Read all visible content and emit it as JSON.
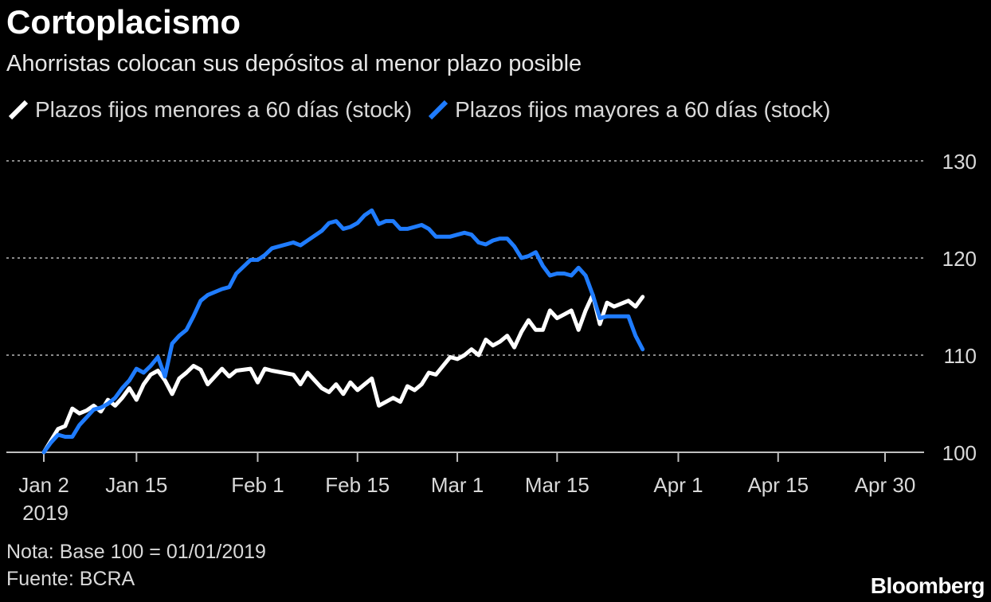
{
  "chart_data": {
    "type": "line",
    "title": "Cortoplacismo",
    "subtitle": "Ahorristas colocan sus depósitos al menor plazo posible",
    "ylim": [
      100,
      130
    ],
    "yticks": [
      100,
      110,
      120,
      130
    ],
    "grid": true,
    "legend": "top-left",
    "x_start": "2019-01-02",
    "x_end": "2019-04-30",
    "xticks": [
      {
        "date": "2019-01-02",
        "label": "Jan 2",
        "sublabel": "2019"
      },
      {
        "date": "2019-01-15",
        "label": "Jan 15"
      },
      {
        "date": "2019-02-01",
        "label": "Feb 1"
      },
      {
        "date": "2019-02-15",
        "label": "Feb 15"
      },
      {
        "date": "2019-03-01",
        "label": "Mar 1"
      },
      {
        "date": "2019-03-15",
        "label": "Mar 15"
      },
      {
        "date": "2019-04-01",
        "label": "Apr 1"
      },
      {
        "date": "2019-04-15",
        "label": "Apr 15"
      },
      {
        "date": "2019-04-30",
        "label": "Apr 30"
      }
    ],
    "series": [
      {
        "name": "Plazos fijos menores a 60 días (stock)",
        "color": "#ffffff",
        "points": [
          [
            "2019-01-02",
            100.0
          ],
          [
            "2019-01-03",
            101.2
          ],
          [
            "2019-01-04",
            102.4
          ],
          [
            "2019-01-05",
            102.7
          ],
          [
            "2019-01-06",
            104.5
          ],
          [
            "2019-01-07",
            104.0
          ],
          [
            "2019-01-08",
            104.3
          ],
          [
            "2019-01-09",
            104.8
          ],
          [
            "2019-01-10",
            104.2
          ],
          [
            "2019-01-11",
            105.4
          ],
          [
            "2019-01-12",
            104.8
          ],
          [
            "2019-01-13",
            105.6
          ],
          [
            "2019-01-14",
            106.6
          ],
          [
            "2019-01-15",
            105.4
          ],
          [
            "2019-01-16",
            107.0
          ],
          [
            "2019-01-17",
            108.0
          ],
          [
            "2019-01-18",
            108.4
          ],
          [
            "2019-01-19",
            107.4
          ],
          [
            "2019-01-20",
            106.0
          ],
          [
            "2019-01-21",
            107.6
          ],
          [
            "2019-01-22",
            108.2
          ],
          [
            "2019-01-23",
            108.9
          ],
          [
            "2019-01-24",
            108.5
          ],
          [
            "2019-01-25",
            107.0
          ],
          [
            "2019-01-27",
            108.6
          ],
          [
            "2019-01-28",
            107.8
          ],
          [
            "2019-01-29",
            108.4
          ],
          [
            "2019-01-31",
            108.6
          ],
          [
            "2019-02-01",
            107.2
          ],
          [
            "2019-02-02",
            108.6
          ],
          [
            "2019-02-03",
            108.4
          ],
          [
            "2019-02-06",
            108.0
          ],
          [
            "2019-02-07",
            107.0
          ],
          [
            "2019-02-08",
            108.2
          ],
          [
            "2019-02-10",
            106.6
          ],
          [
            "2019-02-11",
            106.2
          ],
          [
            "2019-02-12",
            107.0
          ],
          [
            "2019-02-13",
            106.0
          ],
          [
            "2019-02-14",
            107.2
          ],
          [
            "2019-02-15",
            106.4
          ],
          [
            "2019-02-16",
            107.0
          ],
          [
            "2019-02-17",
            107.6
          ],
          [
            "2019-02-18",
            104.8
          ],
          [
            "2019-02-19",
            105.2
          ],
          [
            "2019-02-20",
            105.6
          ],
          [
            "2019-02-21",
            105.2
          ],
          [
            "2019-02-22",
            106.8
          ],
          [
            "2019-02-23",
            106.4
          ],
          [
            "2019-02-24",
            107.0
          ],
          [
            "2019-02-25",
            108.2
          ],
          [
            "2019-02-26",
            108.0
          ],
          [
            "2019-02-28",
            109.8
          ],
          [
            "2019-03-01",
            109.6
          ],
          [
            "2019-03-02",
            110.0
          ],
          [
            "2019-03-03",
            110.6
          ],
          [
            "2019-03-04",
            110.0
          ],
          [
            "2019-03-05",
            111.6
          ],
          [
            "2019-03-06",
            111.0
          ],
          [
            "2019-03-07",
            111.4
          ],
          [
            "2019-03-08",
            112.0
          ],
          [
            "2019-03-09",
            110.8
          ],
          [
            "2019-03-10",
            112.4
          ],
          [
            "2019-03-11",
            113.6
          ],
          [
            "2019-03-12",
            112.6
          ],
          [
            "2019-03-13",
            112.6
          ],
          [
            "2019-03-14",
            114.6
          ],
          [
            "2019-03-15",
            113.8
          ],
          [
            "2019-03-16",
            114.2
          ],
          [
            "2019-03-17",
            114.6
          ],
          [
            "2019-03-18",
            112.6
          ],
          [
            "2019-03-19",
            114.6
          ],
          [
            "2019-03-20",
            116.2
          ],
          [
            "2019-03-21",
            113.2
          ],
          [
            "2019-03-22",
            115.4
          ],
          [
            "2019-03-23",
            115.0
          ],
          [
            "2019-03-24",
            115.3
          ],
          [
            "2019-03-25",
            115.6
          ],
          [
            "2019-03-26",
            115.0
          ],
          [
            "2019-03-27",
            116.0
          ]
        ]
      },
      {
        "name": "Plazos fijos mayores a 60 días (stock)",
        "color": "#1f7cff",
        "points": [
          [
            "2019-01-02",
            100.0
          ],
          [
            "2019-01-03",
            101.0
          ],
          [
            "2019-01-04",
            101.8
          ],
          [
            "2019-01-05",
            101.6
          ],
          [
            "2019-01-06",
            101.6
          ],
          [
            "2019-01-07",
            102.8
          ],
          [
            "2019-01-08",
            103.6
          ],
          [
            "2019-01-09",
            104.4
          ],
          [
            "2019-01-10",
            104.6
          ],
          [
            "2019-01-11",
            105.0
          ],
          [
            "2019-01-12",
            105.6
          ],
          [
            "2019-01-13",
            106.6
          ],
          [
            "2019-01-14",
            107.4
          ],
          [
            "2019-01-15",
            108.6
          ],
          [
            "2019-01-16",
            108.2
          ],
          [
            "2019-01-17",
            108.9
          ],
          [
            "2019-01-18",
            109.8
          ],
          [
            "2019-01-19",
            107.8
          ],
          [
            "2019-01-20",
            111.2
          ],
          [
            "2019-01-21",
            112.0
          ],
          [
            "2019-01-22",
            112.6
          ],
          [
            "2019-01-23",
            114.0
          ],
          [
            "2019-01-24",
            115.6
          ],
          [
            "2019-01-25",
            116.2
          ],
          [
            "2019-01-27",
            116.8
          ],
          [
            "2019-01-28",
            117.0
          ],
          [
            "2019-01-29",
            118.4
          ],
          [
            "2019-01-31",
            119.8
          ],
          [
            "2019-02-01",
            119.8
          ],
          [
            "2019-02-02",
            120.3
          ],
          [
            "2019-02-03",
            121.0
          ],
          [
            "2019-02-06",
            121.6
          ],
          [
            "2019-02-07",
            121.3
          ],
          [
            "2019-02-08",
            121.8
          ],
          [
            "2019-02-10",
            122.8
          ],
          [
            "2019-02-11",
            123.6
          ],
          [
            "2019-02-12",
            123.8
          ],
          [
            "2019-02-13",
            123.0
          ],
          [
            "2019-02-14",
            123.2
          ],
          [
            "2019-02-15",
            123.6
          ],
          [
            "2019-02-16",
            124.4
          ],
          [
            "2019-02-17",
            124.9
          ],
          [
            "2019-02-18",
            123.5
          ],
          [
            "2019-02-19",
            123.8
          ],
          [
            "2019-02-20",
            123.8
          ],
          [
            "2019-02-21",
            123.0
          ],
          [
            "2019-02-22",
            123.0
          ],
          [
            "2019-02-23",
            123.2
          ],
          [
            "2019-02-24",
            123.4
          ],
          [
            "2019-02-25",
            123.0
          ],
          [
            "2019-02-26",
            122.2
          ],
          [
            "2019-02-28",
            122.2
          ],
          [
            "2019-03-01",
            122.4
          ],
          [
            "2019-03-02",
            122.6
          ],
          [
            "2019-03-03",
            122.4
          ],
          [
            "2019-03-04",
            121.6
          ],
          [
            "2019-03-05",
            121.4
          ],
          [
            "2019-03-06",
            121.8
          ],
          [
            "2019-03-07",
            122.0
          ],
          [
            "2019-03-08",
            122.0
          ],
          [
            "2019-03-09",
            121.2
          ],
          [
            "2019-03-10",
            120.0
          ],
          [
            "2019-03-11",
            120.2
          ],
          [
            "2019-03-12",
            120.6
          ],
          [
            "2019-03-13",
            119.2
          ],
          [
            "2019-03-14",
            118.2
          ],
          [
            "2019-03-15",
            118.4
          ],
          [
            "2019-03-16",
            118.4
          ],
          [
            "2019-03-17",
            118.2
          ],
          [
            "2019-03-18",
            119.0
          ],
          [
            "2019-03-19",
            118.2
          ],
          [
            "2019-03-20",
            116.2
          ],
          [
            "2019-03-21",
            113.8
          ],
          [
            "2019-03-22",
            114.0
          ],
          [
            "2019-03-23",
            114.0
          ],
          [
            "2019-03-24",
            114.0
          ],
          [
            "2019-03-25",
            114.0
          ],
          [
            "2019-03-26",
            112.0
          ],
          [
            "2019-03-27",
            110.6
          ]
        ]
      }
    ]
  },
  "notes": {
    "nota": "Nota: Base 100 = 01/01/2019",
    "fuente": "Fuente: BCRA"
  },
  "brand": "Bloomberg"
}
